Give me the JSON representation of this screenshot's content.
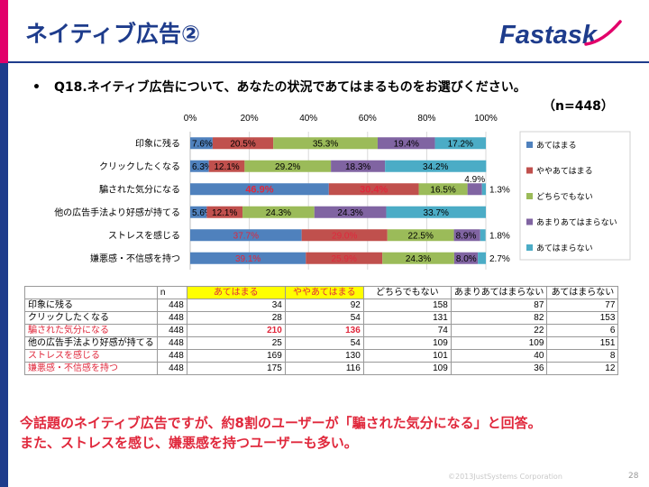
{
  "header": {
    "title": "ネイティブ広告②",
    "logo_text": "Fastask"
  },
  "question": {
    "bullet": "•",
    "text": "Q18.ネイティブ広告について、あなたの状況であてはまるものをお選びください。",
    "sample": "（n=448）"
  },
  "colors": {
    "brand_navy": "#1e3c8c",
    "brand_pink": "#e2006a",
    "alert_red": "#e0283c",
    "highlight_yellow": "#ffff00"
  },
  "chart_data": {
    "type": "bar",
    "orientation": "horizontal",
    "stacked": true,
    "x_ticks": [
      "0%",
      "20%",
      "40%",
      "60%",
      "80%",
      "100%"
    ],
    "xlim": [
      0,
      100
    ],
    "legend_position": "right",
    "grid": true,
    "categories": [
      "印象に残る",
      "クリックしたくなる",
      "騙された気分になる",
      "他の広告手法より好感が持てる",
      "ストレスを感じる",
      "嫌悪感・不信感を持つ"
    ],
    "series": [
      {
        "name": "あてはまる",
        "color": "#4f81bd",
        "values": [
          7.6,
          6.3,
          46.9,
          5.6,
          37.7,
          39.1
        ],
        "labels": [
          "7.6%",
          "6.3%",
          "46.9%",
          "5.6%",
          "37.7%",
          "39.1%"
        ]
      },
      {
        "name": "ややあてはまる",
        "color": "#c0504d",
        "values": [
          20.5,
          12.1,
          30.4,
          12.1,
          29.0,
          25.9
        ],
        "labels": [
          "20.5%",
          "12.1%",
          "30.4%",
          "12.1%",
          "29.0%",
          "25.9%"
        ]
      },
      {
        "name": "どちらでもない",
        "color": "#9bbb59",
        "values": [
          35.3,
          29.2,
          16.5,
          24.3,
          22.5,
          24.3
        ],
        "labels": [
          "35.3%",
          "29.2%",
          "16.5%",
          "24.3%",
          "22.5%",
          "24.3%"
        ]
      },
      {
        "name": "あまりあてはまらない",
        "color": "#8064a2",
        "values": [
          19.4,
          18.3,
          4.9,
          24.3,
          8.9,
          8.0
        ],
        "labels": [
          "19.4%",
          "18.3%",
          "4.9%",
          "24.3%",
          "8.9%",
          "8.0%"
        ]
      },
      {
        "name": "あてはまらない",
        "color": "#4bacc6",
        "values": [
          17.2,
          34.2,
          1.3,
          33.7,
          1.8,
          2.7
        ],
        "labels": [
          "17.2%",
          "34.2%",
          "1.3%",
          "33.7%",
          "1.8%",
          "2.7%"
        ]
      }
    ]
  },
  "table": {
    "headers": [
      "",
      "n",
      "あてはまる",
      "ややあてはまる",
      "どちらでもない",
      "あまりあてはまらない",
      "あてはまらない"
    ],
    "rows": [
      [
        "印象に残る",
        "448",
        "34",
        "92",
        "158",
        "87",
        "77"
      ],
      [
        "クリックしたくなる",
        "448",
        "28",
        "54",
        "131",
        "82",
        "153"
      ],
      [
        "騙された気分になる",
        "448",
        "210",
        "136",
        "74",
        "22",
        "6"
      ],
      [
        "他の広告手法より好感が持てる",
        "448",
        "25",
        "54",
        "109",
        "109",
        "151"
      ],
      [
        "ストレスを感じる",
        "448",
        "169",
        "130",
        "101",
        "40",
        "8"
      ],
      [
        "嫌悪感・不信感を持つ",
        "448",
        "175",
        "116",
        "109",
        "36",
        "12"
      ]
    ]
  },
  "summary": {
    "line1": "今話題のネイティブ広告ですが、約8割のユーザーが「騙された気分になる」と回答。",
    "line2": "また、ストレスを感じ、嫌悪感を持つユーザーも多い。"
  },
  "footer": {
    "copyright": "©2013JustSystems Corporation",
    "page_number": "28"
  }
}
